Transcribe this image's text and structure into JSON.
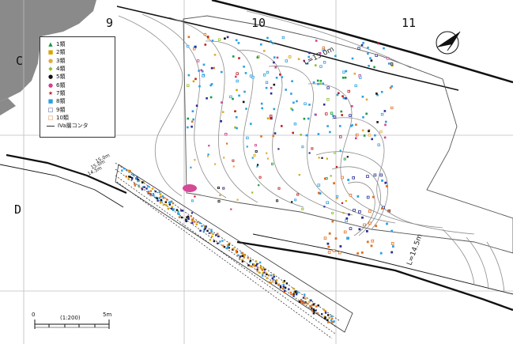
{
  "grid_labels": {
    "col_9": "9",
    "col_10": "10",
    "col_11": "11",
    "row_c": "C",
    "row_d": "D"
  },
  "contour_labels": {
    "l15": "L=15.0m",
    "l14": "L=14.5m"
  },
  "section_labels": {
    "s1": "15.0m",
    "s2": "15.0m",
    "s3": "14.5m"
  },
  "legend": {
    "items": [
      {
        "symbol": "▲",
        "color": "#1a9a3c",
        "label": "1類"
      },
      {
        "symbol": "■",
        "color": "#d8a400",
        "label": "2類"
      },
      {
        "symbol": "●",
        "color": "#e8a93c",
        "label": "3類"
      },
      {
        "symbol": "◆",
        "color": "#8fbf2a",
        "label": "4類"
      },
      {
        "symbol": "●",
        "color": "#111111",
        "label": "5類"
      },
      {
        "symbol": "●",
        "color": "#d0408c",
        "label": "6類"
      },
      {
        "symbol": "★",
        "color": "#c02020",
        "label": "7類"
      },
      {
        "symbol": "■",
        "color": "#2aa0e0",
        "label": "8類"
      },
      {
        "symbol": "□",
        "color": "#2b2d8f",
        "label": "9類"
      },
      {
        "symbol": "□",
        "color": "#e07020",
        "label": "10類"
      }
    ],
    "contour_label": "IVa層コンタ"
  },
  "scale": {
    "zero": "0",
    "ratio": "(1:200)",
    "end": "5m"
  },
  "icons": {
    "north_arrow": "north-arrow-icon"
  },
  "colors": {
    "rock": "#8a8a8a",
    "line": "#111111",
    "grid": "#bdbdbd",
    "contour": "#8c8c8c"
  }
}
